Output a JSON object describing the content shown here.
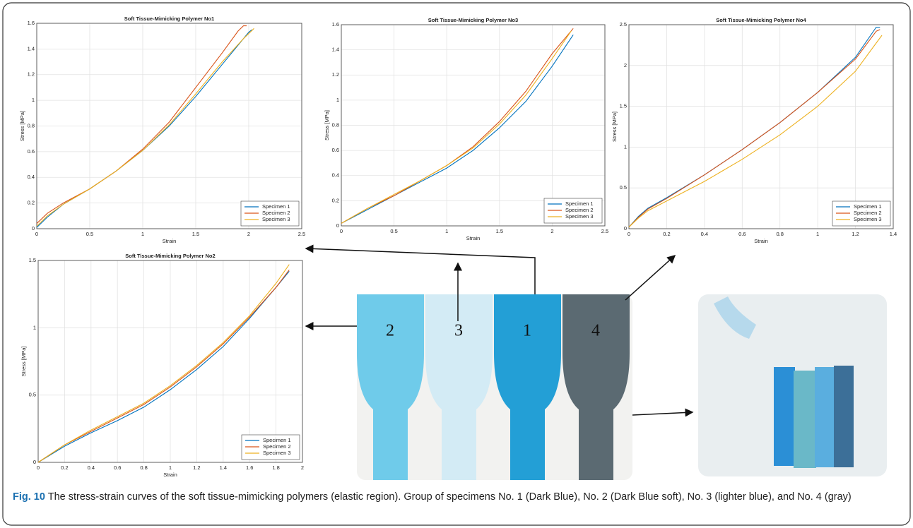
{
  "chart_data": [
    {
      "type": "line",
      "title": "Soft Tissue-Mimicking Polymer No1",
      "xlabel": "Strain",
      "ylabel": "Stress [MPa]",
      "xlim": [
        0,
        2.5
      ],
      "xticks": [
        0,
        0.5,
        1,
        1.5,
        2,
        2.5
      ],
      "ylim": [
        0,
        1.6
      ],
      "yticks": [
        0,
        0.2,
        0.4,
        0.6,
        0.8,
        1,
        1.2,
        1.4,
        1.6
      ],
      "grid": true,
      "legend": "lower right",
      "series": [
        {
          "name": "Specimen 1",
          "color": "#0072bd",
          "x": [
            0,
            0.1,
            0.25,
            0.5,
            0.75,
            1,
            1.25,
            1.5,
            1.75,
            1.9,
            2.0,
            2.03
          ],
          "values": [
            0.01,
            0.09,
            0.19,
            0.31,
            0.45,
            0.61,
            0.8,
            1.03,
            1.28,
            1.43,
            1.53,
            1.55
          ]
        },
        {
          "name": "Specimen 2",
          "color": "#d95319",
          "x": [
            0,
            0.1,
            0.25,
            0.5,
            0.75,
            1,
            1.25,
            1.5,
            1.75,
            1.9,
            1.95,
            1.98
          ],
          "values": [
            0.04,
            0.12,
            0.2,
            0.31,
            0.45,
            0.62,
            0.83,
            1.1,
            1.37,
            1.54,
            1.58,
            1.58
          ]
        },
        {
          "name": "Specimen 3",
          "color": "#edb120",
          "x": [
            0,
            0.1,
            0.25,
            0.5,
            0.75,
            1,
            1.25,
            1.5,
            1.75,
            1.95,
            2.05
          ],
          "values": [
            0.02,
            0.1,
            0.19,
            0.31,
            0.45,
            0.61,
            0.81,
            1.05,
            1.3,
            1.48,
            1.56
          ]
        }
      ]
    },
    {
      "type": "line",
      "title": "Soft Tissue-Mimicking Polymer No3",
      "xlabel": "Strain",
      "ylabel": "Stress [MPa]",
      "xlim": [
        0,
        2.5
      ],
      "xticks": [
        0,
        0.5,
        1,
        1.5,
        2,
        2.5
      ],
      "ylim": [
        0,
        1.6
      ],
      "yticks": [
        0,
        0.2,
        0.4,
        0.6,
        0.8,
        1,
        1.2,
        1.4,
        1.6
      ],
      "grid": true,
      "legend": "lower right",
      "series": [
        {
          "name": "Specimen 1",
          "color": "#0072bd",
          "x": [
            0,
            0.25,
            0.5,
            0.75,
            1,
            1.25,
            1.5,
            1.75,
            2.0,
            2.2
          ],
          "values": [
            0.02,
            0.13,
            0.24,
            0.35,
            0.46,
            0.6,
            0.78,
            0.99,
            1.27,
            1.52
          ]
        },
        {
          "name": "Specimen 2",
          "color": "#d95319",
          "x": [
            0,
            0.25,
            0.5,
            0.75,
            1,
            1.25,
            1.5,
            1.75,
            2.0,
            2.2
          ],
          "values": [
            0.02,
            0.14,
            0.24,
            0.36,
            0.48,
            0.63,
            0.83,
            1.07,
            1.37,
            1.57
          ]
        },
        {
          "name": "Specimen 3",
          "color": "#edb120",
          "x": [
            0,
            0.25,
            0.5,
            0.75,
            1,
            1.25,
            1.5,
            1.75,
            2.0,
            2.18
          ],
          "values": [
            0.02,
            0.14,
            0.25,
            0.36,
            0.48,
            0.62,
            0.81,
            1.04,
            1.33,
            1.55
          ]
        }
      ]
    },
    {
      "type": "line",
      "title": "Soft Tissue-Mimicking Polymer No4",
      "xlabel": "Strain",
      "ylabel": "Stress [MPa]",
      "xlim": [
        0,
        1.4
      ],
      "xticks": [
        0,
        0.2,
        0.4,
        0.6,
        0.8,
        1,
        1.2,
        1.4
      ],
      "ylim": [
        0,
        2.5
      ],
      "yticks": [
        0,
        0.5,
        1,
        1.5,
        2,
        2.5
      ],
      "grid": true,
      "legend": "lower right",
      "series": [
        {
          "name": "Specimen 1",
          "color": "#0072bd",
          "x": [
            0,
            0.05,
            0.1,
            0.2,
            0.4,
            0.6,
            0.8,
            1.0,
            1.2,
            1.31,
            1.33
          ],
          "values": [
            0.02,
            0.15,
            0.25,
            0.38,
            0.66,
            0.97,
            1.3,
            1.67,
            2.1,
            2.47,
            2.47
          ]
        },
        {
          "name": "Specimen 2",
          "color": "#d95319",
          "x": [
            0,
            0.05,
            0.1,
            0.2,
            0.4,
            0.6,
            0.8,
            1.0,
            1.2,
            1.31,
            1.33
          ],
          "values": [
            0.02,
            0.14,
            0.24,
            0.37,
            0.66,
            0.97,
            1.3,
            1.67,
            2.08,
            2.42,
            2.44
          ]
        },
        {
          "name": "Specimen 3",
          "color": "#edb120",
          "x": [
            0,
            0.05,
            0.1,
            0.2,
            0.4,
            0.6,
            0.8,
            1.0,
            1.2,
            1.34
          ],
          "values": [
            0.02,
            0.13,
            0.22,
            0.34,
            0.58,
            0.85,
            1.15,
            1.5,
            1.93,
            2.37
          ]
        }
      ]
    },
    {
      "type": "line",
      "title": "Soft Tissue-Mimicking Polymer No2",
      "xlabel": "Strain",
      "ylabel": "Stress [MPa]",
      "xlim": [
        0,
        2
      ],
      "xticks": [
        0,
        0.2,
        0.4,
        0.6,
        0.8,
        1,
        1.2,
        1.4,
        1.6,
        1.8,
        2
      ],
      "ylim": [
        0,
        1.5
      ],
      "yticks": [
        0,
        0.5,
        1,
        1.5
      ],
      "grid": true,
      "legend": "lower right",
      "series": [
        {
          "name": "Specimen 1",
          "color": "#0072bd",
          "x": [
            0,
            0.2,
            0.4,
            0.6,
            0.8,
            1.0,
            1.2,
            1.4,
            1.6,
            1.8,
            1.9
          ],
          "values": [
            0,
            0.12,
            0.22,
            0.31,
            0.41,
            0.54,
            0.69,
            0.86,
            1.07,
            1.3,
            1.42
          ]
        },
        {
          "name": "Specimen 2",
          "color": "#d95319",
          "x": [
            0,
            0.2,
            0.4,
            0.6,
            0.8,
            1.0,
            1.2,
            1.4,
            1.6,
            1.8,
            1.9
          ],
          "values": [
            0,
            0.13,
            0.23,
            0.33,
            0.43,
            0.56,
            0.71,
            0.88,
            1.08,
            1.3,
            1.43
          ]
        },
        {
          "name": "Specimen 3",
          "color": "#edb120",
          "x": [
            0,
            0.2,
            0.4,
            0.6,
            0.8,
            1.0,
            1.2,
            1.4,
            1.6,
            1.8,
            1.9
          ],
          "values": [
            0,
            0.13,
            0.24,
            0.34,
            0.44,
            0.57,
            0.72,
            0.89,
            1.09,
            1.33,
            1.47
          ]
        }
      ]
    }
  ],
  "photo_labels": [
    "2",
    "3",
    "1",
    "4"
  ],
  "caption": {
    "label": "Fig. 10",
    "text": "The stress-strain curves of the soft tissue-mimicking polymers (elastic region). Group of specimens No. 1 (Dark Blue), No. 2 (Dark Blue soft), No. 3 (lighter blue), and No. 4 (gray)"
  }
}
